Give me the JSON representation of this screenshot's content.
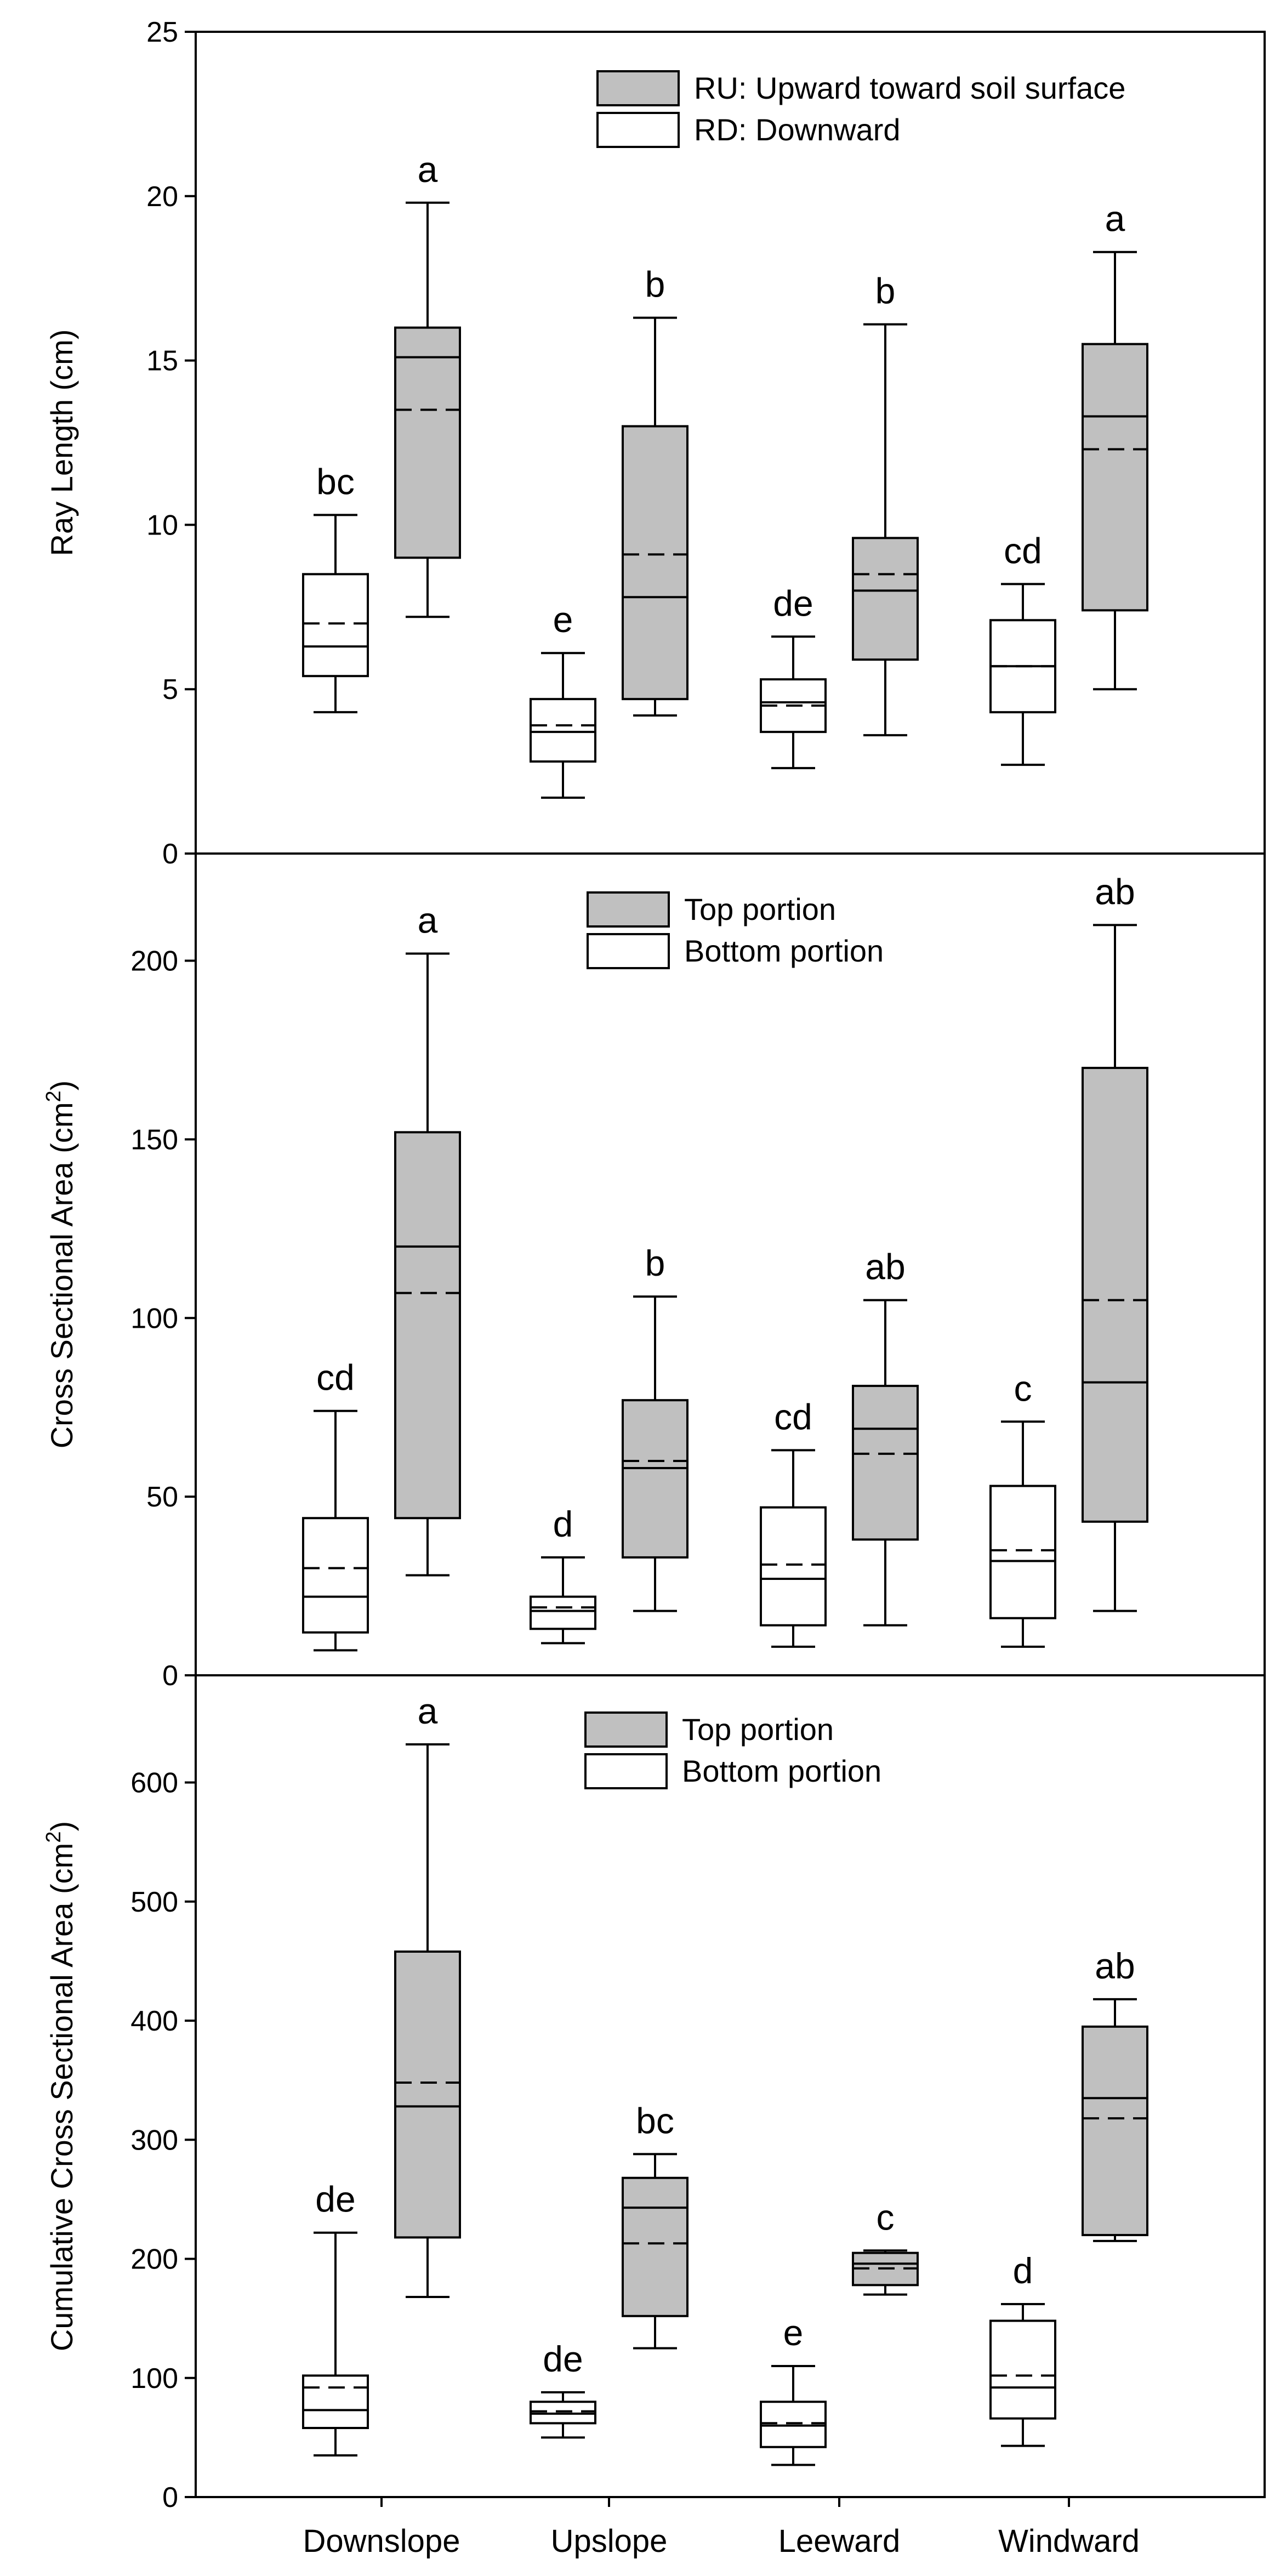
{
  "chart_data": {
    "type": "box",
    "categories": [
      "Downslope",
      "Upslope",
      "Leeward",
      "Windward"
    ],
    "colors": {
      "top": "#c0c0c0",
      "bottom": "#ffffff",
      "line": "#000000"
    },
    "panels": [
      {
        "ylabel": "Ray Length (cm)",
        "ylim": [
          0,
          25
        ],
        "yticks": [
          0,
          5,
          10,
          15,
          20,
          25
        ],
        "legend": [
          "RU: Upward toward soil surface",
          "RD: Downward"
        ],
        "legend_position": "top-right",
        "series": [
          {
            "name": "RD: Downward",
            "fill": "bottom",
            "boxes": [
              {
                "min": 4.3,
                "q1": 5.4,
                "median": 6.3,
                "mean": 7.0,
                "q3": 8.5,
                "max": 10.3,
                "sig": "bc"
              },
              {
                "min": 1.7,
                "q1": 2.8,
                "median": 3.7,
                "mean": 3.9,
                "q3": 4.7,
                "max": 6.1,
                "sig": "e"
              },
              {
                "min": 2.6,
                "q1": 3.7,
                "median": 4.6,
                "mean": 4.5,
                "q3": 5.3,
                "max": 6.6,
                "sig": "de"
              },
              {
                "min": 2.7,
                "q1": 4.3,
                "median": 5.7,
                "mean": 5.7,
                "q3": 7.1,
                "max": 8.2,
                "sig": "cd"
              }
            ]
          },
          {
            "name": "RU: Upward toward soil surface",
            "fill": "top",
            "boxes": [
              {
                "min": 7.2,
                "q1": 9.0,
                "median": 15.1,
                "mean": 13.5,
                "q3": 16.0,
                "max": 19.8,
                "sig": "a"
              },
              {
                "min": 4.2,
                "q1": 4.7,
                "median": 7.8,
                "mean": 9.1,
                "q3": 13.0,
                "max": 16.3,
                "sig": "b"
              },
              {
                "min": 3.6,
                "q1": 5.9,
                "median": 8.0,
                "mean": 8.5,
                "q3": 9.6,
                "max": 16.1,
                "sig": "b"
              },
              {
                "min": 5.0,
                "q1": 7.4,
                "median": 13.3,
                "mean": 12.3,
                "q3": 15.5,
                "max": 18.3,
                "sig": "a"
              }
            ]
          }
        ]
      },
      {
        "ylabel": "Cross Sectional Area (cm",
        "ylabel_sup": "2",
        "ylabel_end": ")",
        "ylim": [
          0,
          230
        ],
        "yticks": [
          0,
          50,
          100,
          150,
          200
        ],
        "legend": [
          "Top portion",
          "Bottom portion"
        ],
        "legend_position": "top-center",
        "series": [
          {
            "name": "Bottom portion",
            "fill": "bottom",
            "boxes": [
              {
                "min": 7,
                "q1": 12,
                "median": 22,
                "mean": 30,
                "q3": 44,
                "max": 74,
                "sig": "cd"
              },
              {
                "min": 9,
                "q1": 13,
                "median": 18,
                "mean": 19,
                "q3": 22,
                "max": 33,
                "sig": "d"
              },
              {
                "min": 8,
                "q1": 14,
                "median": 27,
                "mean": 31,
                "q3": 47,
                "max": 63,
                "sig": "cd"
              },
              {
                "min": 8,
                "q1": 16,
                "median": 32,
                "mean": 35,
                "q3": 53,
                "max": 71,
                "sig": "c"
              }
            ]
          },
          {
            "name": "Top portion",
            "fill": "top",
            "boxes": [
              {
                "min": 28,
                "q1": 44,
                "median": 120,
                "mean": 107,
                "q3": 152,
                "max": 202,
                "sig": "a"
              },
              {
                "min": 18,
                "q1": 33,
                "median": 58,
                "mean": 60,
                "q3": 77,
                "max": 106,
                "sig": "b"
              },
              {
                "min": 14,
                "q1": 38,
                "median": 69,
                "mean": 62,
                "q3": 81,
                "max": 105,
                "sig": "ab"
              },
              {
                "min": 18,
                "q1": 43,
                "median": 82,
                "mean": 105,
                "q3": 170,
                "max": 210,
                "sig": "ab"
              }
            ]
          }
        ]
      },
      {
        "ylabel": "Cumulative Cross Sectional Area (cm",
        "ylabel_sup": "2",
        "ylabel_end": ")",
        "ylim": [
          0,
          690
        ],
        "yticks": [
          0,
          100,
          200,
          300,
          400,
          500,
          600
        ],
        "legend": [
          "Top portion",
          "Bottom portion"
        ],
        "legend_position": "top-center",
        "series": [
          {
            "name": "Bottom portion",
            "fill": "bottom",
            "boxes": [
              {
                "min": 35,
                "q1": 58,
                "median": 73,
                "mean": 92,
                "q3": 102,
                "max": 222,
                "sig": "de"
              },
              {
                "min": 50,
                "q1": 62,
                "median": 70,
                "mean": 72,
                "q3": 80,
                "max": 88,
                "sig": "de"
              },
              {
                "min": 27,
                "q1": 42,
                "median": 60,
                "mean": 62,
                "q3": 80,
                "max": 110,
                "sig": "e"
              },
              {
                "min": 43,
                "q1": 66,
                "median": 92,
                "mean": 102,
                "q3": 148,
                "max": 162,
                "sig": "d"
              }
            ]
          },
          {
            "name": "Top portion",
            "fill": "top",
            "boxes": [
              {
                "min": 168,
                "q1": 218,
                "median": 328,
                "mean": 348,
                "q3": 458,
                "max": 632,
                "sig": "a"
              },
              {
                "min": 125,
                "q1": 152,
                "median": 243,
                "mean": 213,
                "q3": 268,
                "max": 288,
                "sig": "bc"
              },
              {
                "min": 170,
                "q1": 178,
                "median": 196,
                "mean": 192,
                "q3": 205,
                "max": 207,
                "sig": "c"
              },
              {
                "min": 215,
                "q1": 220,
                "median": 335,
                "mean": 318,
                "q3": 395,
                "max": 418,
                "sig": "ab"
              }
            ]
          }
        ]
      }
    ]
  }
}
